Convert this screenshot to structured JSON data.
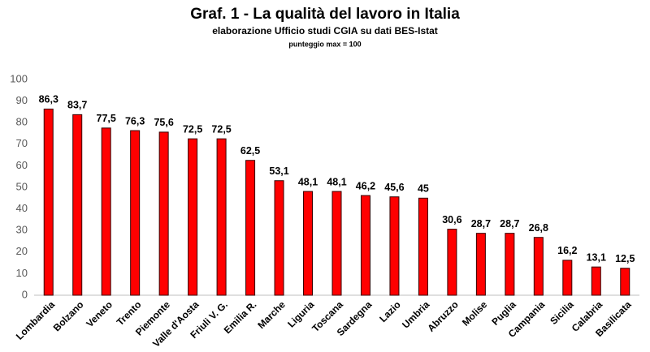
{
  "chart_data": {
    "type": "bar",
    "title": "Graf. 1 - La qualità del lavoro in Italia",
    "subtitle": "elaborazione Ufficio studi CGIA su dati BES-Istat",
    "note": "punteggio max = 100",
    "categories": [
      "Lombardia",
      "Bolzano",
      "Veneto",
      "Trento",
      "Piemonte",
      "Valle d'Aosta",
      "Friuli V. G.",
      "Emilia R.",
      "Marche",
      "Liguria",
      "Toscana",
      "Sardegna",
      "Lazio",
      "Umbria",
      "Abruzzo",
      "Molise",
      "Puglia",
      "Campania",
      "Sicilia",
      "Calabria",
      "Basilicata"
    ],
    "values": [
      86.3,
      83.7,
      77.5,
      76.3,
      75.6,
      72.5,
      72.5,
      62.5,
      53.1,
      48.1,
      48.1,
      46.2,
      45.6,
      45,
      30.6,
      28.7,
      28.7,
      26.8,
      16.2,
      13.1,
      12.5
    ],
    "value_labels": [
      "86,3",
      "83,7",
      "77,5",
      "76,3",
      "75,6",
      "72,5",
      "72,5",
      "62,5",
      "53,1",
      "48,1",
      "48,1",
      "46,2",
      "45,6",
      "45",
      "30,6",
      "28,7",
      "28,7",
      "26,8",
      "16,2",
      "13,1",
      "12,5"
    ],
    "color": "#ff0000",
    "ylim": [
      0,
      100
    ],
    "yticks": [
      0,
      10,
      20,
      30,
      40,
      50,
      60,
      70,
      80,
      90,
      100
    ],
    "grid": false
  }
}
